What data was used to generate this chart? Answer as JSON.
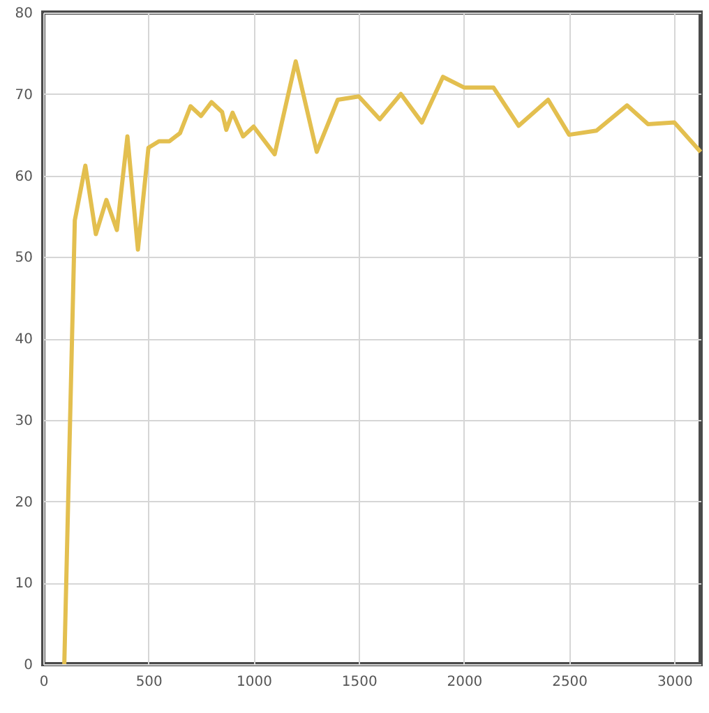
{
  "chart_data": {
    "type": "line",
    "x": [
      100,
      150,
      200,
      250,
      300,
      350,
      400,
      450,
      500,
      550,
      600,
      650,
      700,
      750,
      800,
      850,
      870,
      900,
      950,
      1000,
      1100,
      1200,
      1300,
      1400,
      1500,
      1600,
      1700,
      1800,
      1900,
      2000,
      2140,
      2260,
      2400,
      2500,
      2630,
      2775,
      2875,
      3000,
      3125
    ],
    "series": [
      {
        "color": "#e3bf4f",
        "values": [
          0,
          54.5,
          61.2,
          52.8,
          57,
          53.3,
          64.8,
          50.9,
          63.4,
          64.2,
          64.2,
          65.2,
          68.5,
          67.3,
          69,
          67.8,
          65.6,
          67.7,
          64.8,
          66,
          62.6,
          74,
          62.9,
          69.3,
          69.7,
          66.9,
          70,
          66.5,
          72.1,
          70.8,
          70.8,
          66.1,
          69.3,
          65,
          65.5,
          68.6,
          66.3,
          66.5,
          62.9
        ]
      }
    ],
    "xlim": [
      0,
      3125
    ],
    "ylim": [
      0,
      80
    ],
    "xticks": [
      0,
      500,
      1000,
      1500,
      2000,
      2500,
      3000
    ],
    "yticks": [
      0,
      10,
      20,
      30,
      40,
      50,
      60,
      70,
      80
    ],
    "grid": true
  }
}
